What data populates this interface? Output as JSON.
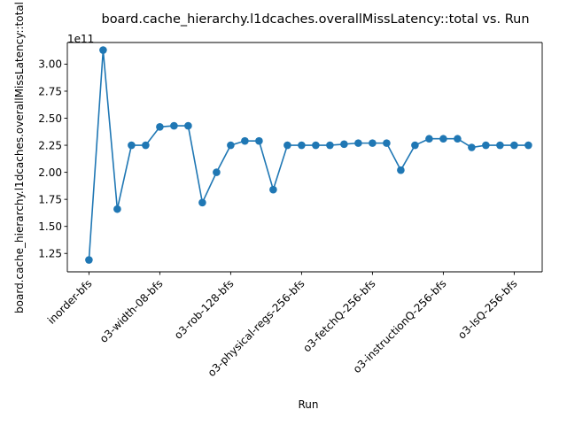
{
  "chart_data": {
    "type": "line",
    "title": "board.cache_hierarchy.l1dcaches.overallMissLatency::total vs. Run",
    "xlabel": "Run",
    "ylabel": "board.cache_hierarchy.l1dcaches.overallMissLatency::total",
    "y_offset_label": "1e11",
    "grid": false,
    "marker": "circle",
    "color": "#1f77b4",
    "ylim": [
      1.08,
      3.2
    ],
    "yticks": [
      1.25,
      1.5,
      1.75,
      2.0,
      2.25,
      2.5,
      2.75,
      3.0
    ],
    "ytick_labels": [
      "1.25",
      "1.50",
      "1.75",
      "2.00",
      "2.25",
      "2.50",
      "2.75",
      "3.00"
    ],
    "xtick_labels": [
      {
        "index": 0,
        "label": "inorder-bfs"
      },
      {
        "index": 5,
        "label": "o3-width-08-bfs"
      },
      {
        "index": 10,
        "label": "o3-rob-128-bfs"
      },
      {
        "index": 15,
        "label": "o3-physical-regs-256-bfs"
      },
      {
        "index": 20,
        "label": "o3-fetchQ-256-bfs"
      },
      {
        "index": 25,
        "label": "o3-instructionQ-256-bfs"
      },
      {
        "index": 30,
        "label": "o3-lsQ-256-bfs"
      }
    ],
    "values": [
      1.19,
      3.13,
      1.66,
      2.25,
      2.25,
      2.42,
      2.43,
      2.43,
      1.72,
      2.0,
      2.25,
      2.29,
      2.29,
      1.84,
      2.25,
      2.25,
      2.25,
      2.25,
      2.26,
      2.27,
      2.27,
      2.27,
      2.02,
      2.25,
      2.31,
      2.31,
      2.31,
      2.23,
      2.25,
      2.25,
      2.25,
      2.25
    ]
  }
}
